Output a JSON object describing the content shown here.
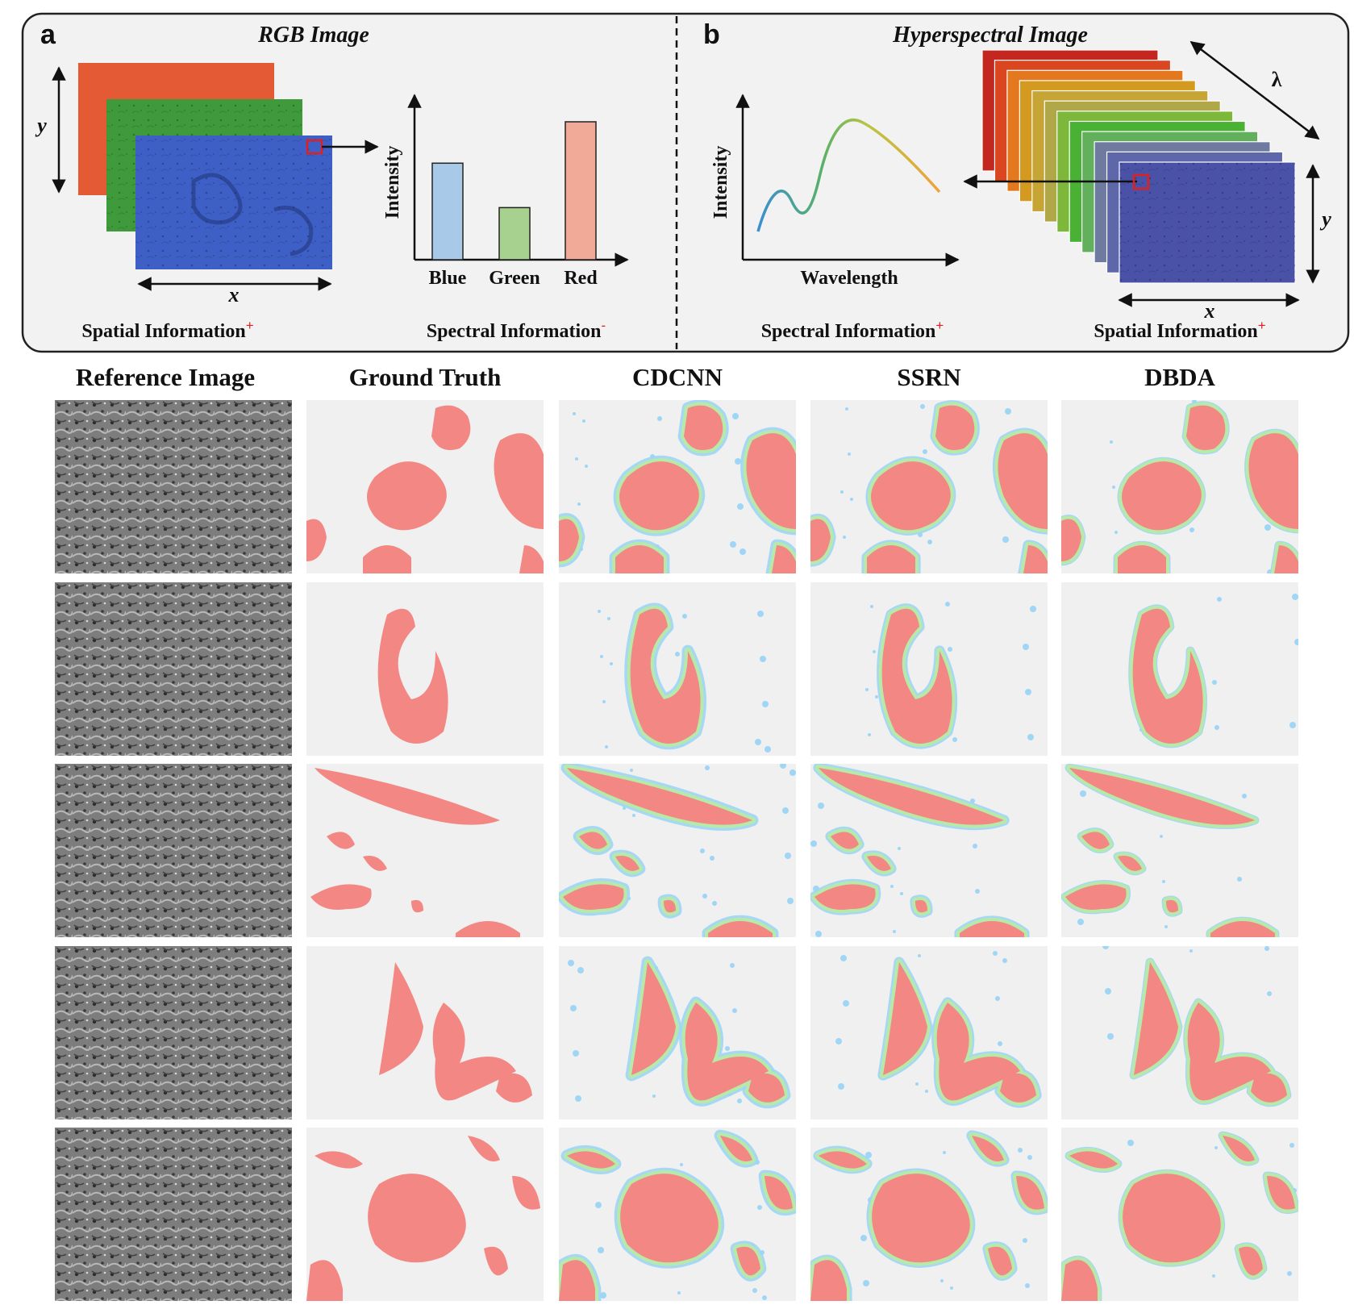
{
  "panel_a": {
    "letter": "a",
    "title": "RGB Image",
    "axis_y": "y",
    "axis_x": "x",
    "chart_ylabel": "Intensity",
    "caption_left": "Spatial Information",
    "caption_left_sign": "+",
    "caption_right": "Spectral Information",
    "caption_right_sign": "-",
    "layer_colors": [
      "#e35a35",
      "#3f9a3c",
      "#3e5fc6"
    ]
  },
  "panel_b": {
    "letter": "b",
    "title": "Hyperspectral Image",
    "axis_lambda": "λ",
    "axis_y": "y",
    "axis_x": "x",
    "chart_ylabel": "Intensity",
    "chart_xlabel": "Wavelength",
    "caption_left": "Spectral Information",
    "caption_left_sign": "+",
    "caption_right": "Spatial Information",
    "caption_right_sign": "+",
    "layer_colors": [
      "#c4271f",
      "#d9461f",
      "#e3781e",
      "#d49a20",
      "#c7a535",
      "#b0a848",
      "#7eb83a",
      "#49b133",
      "#63b05c",
      "#6f7aa0",
      "#5d67aa",
      "#4a52a8"
    ]
  },
  "chart_data": {
    "type": "bar",
    "categories": [
      "Blue",
      "Green",
      "Red"
    ],
    "values": [
      0.63,
      0.34,
      0.9
    ],
    "colors": [
      "#a9c9e8",
      "#a7d18e",
      "#f1a998"
    ],
    "ylabel": "Intensity",
    "ylim": [
      0,
      1
    ]
  },
  "grid": {
    "columns": [
      "Reference Image",
      "Ground Truth",
      "CDCNN",
      "SSRN",
      "DBDA"
    ],
    "rows": 5,
    "colors": {
      "background": "#f0f0f0",
      "tumor": "#f28783",
      "false_positive": "#9fd6f5",
      "false_negative": "#b7eaa9"
    }
  }
}
